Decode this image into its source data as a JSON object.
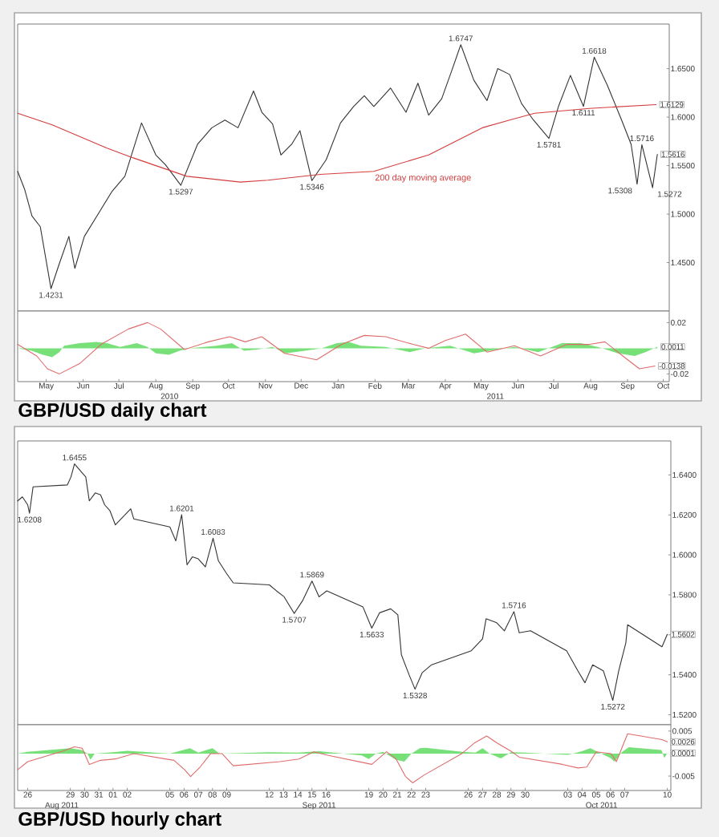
{
  "chart_data": [
    {
      "type": "line",
      "xlim": [
        "2010-04-21",
        "2011-10-20"
      ],
      "ylim": [
        1.4,
        1.696
      ],
      "tick_labels": "y",
      "yticks": [
        {
          "value": 1.45,
          "label": "1.4500"
        },
        {
          "value": 1.5,
          "label": "1.5000"
        },
        {
          "value": 1.55,
          "label": "1.5500"
        },
        {
          "value": 1.6,
          "label": "1.6000"
        },
        {
          "value": 1.65,
          "label": "1.6500"
        }
      ],
      "series": [
        {
          "color": "#333333",
          "x": [
            "2010-04-21",
            "2010-04-27",
            "2010-05-03",
            "2010-05-10",
            "2010-05-19",
            "2010-05-26",
            "2010-06-03",
            "2010-06-08",
            "2010-06-16",
            "2010-06-29",
            "2010-07-09",
            "2010-07-20",
            "2010-08-03",
            "2010-08-15",
            "2010-08-23",
            "2010-09-05",
            "2010-09-19",
            "2010-10-01",
            "2010-10-12",
            "2010-10-23",
            "2010-11-05",
            "2010-11-12",
            "2010-11-21",
            "2010-11-28",
            "2010-12-07",
            "2010-12-14",
            "2010-12-24",
            "2011-01-05",
            "2011-01-17",
            "2011-01-28",
            "2011-02-06",
            "2011-02-14",
            "2011-02-28",
            "2011-03-13",
            "2011-03-23",
            "2011-04-01",
            "2011-04-12",
            "2011-04-21",
            "2011-04-28",
            "2011-05-09",
            "2011-05-20",
            "2011-05-29",
            "2011-06-08",
            "2011-06-18",
            "2011-06-28",
            "2011-07-11",
            "2011-07-19",
            "2011-07-29",
            "2011-08-09",
            "2011-08-18",
            "2011-08-29",
            "2011-09-10",
            "2011-09-18",
            "2011-09-23",
            "2011-09-27",
            "2011-10-06",
            "2011-10-10"
          ],
          "values": [
            1.544,
            1.525,
            1.498,
            1.487,
            1.4231,
            1.449,
            1.477,
            1.444,
            1.477,
            1.503,
            1.523,
            1.539,
            1.594,
            1.561,
            1.551,
            1.5297,
            1.572,
            1.589,
            1.597,
            1.589,
            1.627,
            1.605,
            1.593,
            1.561,
            1.572,
            1.586,
            1.5346,
            1.556,
            1.594,
            1.611,
            1.622,
            1.611,
            1.63,
            1.605,
            1.635,
            1.602,
            1.619,
            1.65,
            1.6747,
            1.638,
            1.617,
            1.65,
            1.644,
            1.614,
            1.597,
            1.5781,
            1.611,
            1.643,
            1.6111,
            1.6618,
            1.633,
            1.597,
            1.572,
            1.5308,
            1.5716,
            1.5272,
            1.5616
          ],
          "value_labels": [
            null,
            null,
            null,
            null,
            null,
            null,
            null,
            null,
            null,
            null,
            null,
            null,
            null,
            null,
            null,
            null,
            null,
            null,
            null,
            null,
            null,
            null,
            null,
            null,
            null,
            null,
            null,
            null,
            null,
            null,
            null,
            null,
            null,
            null,
            null,
            null,
            null,
            null,
            null,
            null,
            null,
            null,
            null,
            null,
            null,
            null,
            null,
            null,
            null,
            null,
            null,
            null,
            null,
            null,
            null,
            null,
            "1.5616"
          ]
        },
        {
          "name": "200 day moving average",
          "color": "#d43c3c",
          "x": [
            "2010-04-21",
            "2010-05-20",
            "2010-07-05",
            "2010-07-27",
            "2010-09-10",
            "2010-10-25",
            "2010-11-17",
            "2010-12-31",
            "2011-02-14",
            "2011-04-01",
            "2011-05-16",
            "2011-06-08",
            "2011-06-29",
            "2011-08-14",
            "2011-10-09"
          ],
          "values": [
            1.604,
            1.592,
            1.568,
            1.558,
            1.539,
            1.533,
            1.535,
            1.541,
            1.544,
            1.561,
            1.589,
            1.597,
            1.604,
            1.609,
            1.6129
          ],
          "value_labels": [
            null,
            null,
            null,
            null,
            null,
            null,
            null,
            null,
            null,
            null,
            null,
            null,
            null,
            null,
            "1.6129"
          ]
        }
      ],
      "annotations": [
        {
          "text": "1.4231",
          "x": "2010-05-19",
          "y": 1.4231
        },
        {
          "text": "1.5297",
          "x": "2010-09-05",
          "y": 1.5297
        },
        {
          "text": "1.5346",
          "x": "2010-12-24",
          "y": 1.5346
        },
        {
          "text": "1.6747",
          "x": "2011-04-28",
          "y": 1.6747
        },
        {
          "text": "1.5781",
          "x": "2011-07-11",
          "y": 1.5781
        },
        {
          "text": "1.6111",
          "x": "2011-08-09",
          "y": 1.6111
        },
        {
          "text": "1.6618",
          "x": "2011-08-18",
          "y": 1.6618
        },
        {
          "text": "1.5308",
          "x": "2011-09-23",
          "y": 1.5308
        },
        {
          "text": "1.5716",
          "x": "2011-09-27",
          "y": 1.5716
        },
        {
          "text": "1.5272",
          "x": "2011-10-06",
          "y": 1.5272
        }
      ]
    },
    {
      "type": "line",
      "title": "GBP/USD daily chart",
      "xlim": [
        "2010-04-21",
        "2011-10-20"
      ],
      "ylim": [
        -0.026,
        0.029
      ],
      "yticks": [
        0.02,
        -0.02
      ],
      "xticks": [
        {
          "value": "2010-05-15",
          "label": "May"
        },
        {
          "value": "2010-06-15",
          "label": "Jun"
        },
        {
          "value": "2010-07-15",
          "label": "Jul"
        },
        {
          "value": "2010-08-15",
          "label": "Aug"
        },
        {
          "value": "2010-09-15",
          "label": "Sep"
        },
        {
          "value": "2010-10-15",
          "label": "Oct"
        },
        {
          "value": "2010-11-15",
          "label": "Nov"
        },
        {
          "value": "2010-12-15",
          "label": "Dec"
        },
        {
          "value": "2011-01-15",
          "label": "Jan"
        },
        {
          "value": "2011-02-15",
          "label": "Feb"
        },
        {
          "value": "2011-03-15",
          "label": "Mar"
        },
        {
          "value": "2011-04-15",
          "label": "Apr"
        },
        {
          "value": "2011-05-15",
          "label": "May"
        },
        {
          "value": "2011-06-15",
          "label": "Jun"
        },
        {
          "value": "2011-07-15",
          "label": "Jul"
        },
        {
          "value": "2011-08-15",
          "label": "Aug"
        },
        {
          "value": "2011-09-15",
          "label": "Sep"
        },
        {
          "value": "2011-10-15",
          "label": "Oct"
        }
      ],
      "series": [
        {
          "type": "area",
          "color": "#78e078",
          "x": [
            "2010-04-21",
            "2010-05-03",
            "2010-05-12",
            "2010-05-20",
            "2010-05-26",
            "2010-05-30",
            "2010-06-12",
            "2010-06-26",
            "2010-07-05",
            "2010-07-16",
            "2010-07-30",
            "2010-08-08",
            "2010-08-15",
            "2010-08-26",
            "2010-09-04",
            "2010-09-12",
            "2010-10-05",
            "2010-10-18",
            "2010-10-28",
            "2010-11-08",
            "2010-11-21",
            "2010-12-02",
            "2010-12-18",
            "2011-01-01",
            "2011-01-14",
            "2011-01-24",
            "2011-02-03",
            "2011-02-24",
            "2011-03-16",
            "2011-03-29",
            "2011-04-19",
            "2011-05-09",
            "2011-05-22",
            "2011-06-12",
            "2011-07-02",
            "2011-07-22",
            "2011-08-07",
            "2011-08-21",
            "2011-09-07",
            "2011-09-21",
            "2011-09-30",
            "2011-10-10"
          ],
          "values": [
            0,
            -0.002,
            -0.005,
            -0.007,
            -0.003,
            0.002,
            0.004,
            0.005,
            0.004,
            0.001,
            0.004,
            0.001,
            -0.004,
            -0.005,
            -0.002,
            0,
            0.002,
            0.004,
            -0.002,
            -0.001,
            0.001,
            -0.004,
            -0.002,
            0,
            0.004,
            0.005,
            0.002,
            0.001,
            -0.003,
            0,
            0.002,
            -0.004,
            -0.002,
            0.001,
            -0.003,
            0.004,
            0.004,
            0.001,
            -0.004,
            -0.006,
            -0.003,
            0.0011
          ],
          "value_labels": [
            null,
            null,
            null,
            null,
            null,
            null,
            null,
            null,
            null,
            null,
            null,
            null,
            null,
            null,
            null,
            null,
            null,
            null,
            null,
            null,
            null,
            null,
            null,
            null,
            null,
            null,
            null,
            null,
            null,
            null,
            null,
            null,
            null,
            null,
            null,
            null,
            null,
            null,
            null,
            null,
            null,
            "0.0011"
          ]
        },
        {
          "type": "line",
          "color": "#e06b6b",
          "x": [
            "2010-04-21",
            "2010-05-07",
            "2010-05-16",
            "2010-05-26",
            "2010-06-12",
            "2010-06-30",
            "2010-07-23",
            "2010-08-08",
            "2010-08-19",
            "2010-09-08",
            "2010-09-28",
            "2010-10-16",
            "2010-10-29",
            "2010-11-12",
            "2010-12-01",
            "2010-12-28",
            "2011-01-18",
            "2011-02-06",
            "2011-02-24",
            "2011-03-19",
            "2011-04-01",
            "2011-04-15",
            "2011-05-02",
            "2011-05-20",
            "2011-06-12",
            "2011-07-04",
            "2011-07-26",
            "2011-08-14",
            "2011-08-27",
            "2011-09-11",
            "2011-09-25",
            "2011-10-08"
          ],
          "values": [
            0.003,
            -0.006,
            -0.016,
            -0.02,
            -0.012,
            0.003,
            0.015,
            0.02,
            0.015,
            -0.001,
            0.005,
            0.009,
            0.005,
            0.009,
            -0.004,
            -0.009,
            0.003,
            0.01,
            0.009,
            0.003,
            0,
            0.006,
            0.011,
            -0.003,
            0.002,
            -0.006,
            0.003,
            0.003,
            0.005,
            -0.006,
            -0.016,
            -0.0138
          ],
          "value_labels": [
            null,
            null,
            null,
            null,
            null,
            null,
            null,
            null,
            null,
            null,
            null,
            null,
            null,
            null,
            null,
            null,
            null,
            null,
            null,
            null,
            null,
            null,
            null,
            null,
            null,
            null,
            null,
            null,
            null,
            null,
            null,
            "-0.0138"
          ]
        }
      ],
      "annotations": [
        "2010",
        "2011"
      ]
    },
    {
      "type": "line",
      "xlim": [
        "2011-08-25T19:00",
        "2011-10-10T18:00"
      ],
      "ylim": [
        1.515,
        1.657
      ],
      "tick_labels": "y",
      "yticks": [
        {
          "value": 1.52,
          "label": "1.5200"
        },
        {
          "value": 1.54,
          "label": "1.5400"
        },
        {
          "value": 1.56,
          "label": null
        },
        {
          "value": 1.58,
          "label": "1.5800"
        },
        {
          "value": 1.6,
          "label": "1.6000"
        },
        {
          "value": 1.62,
          "label": "1.6200"
        },
        {
          "value": 1.64,
          "label": "1.6400"
        }
      ],
      "series": [
        {
          "color": "#333333",
          "x": [
            "2011-08-25T19:00",
            "2011-08-26T03:00",
            "2011-08-26T12:00",
            "2011-08-26T15:00",
            "2011-08-26T21:00",
            "2011-08-29T07:00",
            "2011-08-29T13:00",
            "2011-08-29T19:00",
            "2011-08-30T08:00",
            "2011-08-30T14:00",
            "2011-08-30T20:00",
            "2011-08-31T06:00",
            "2011-08-31T15:00",
            "2011-08-31T22:00",
            "2011-09-01T07:00",
            "2011-09-01T16:00",
            "2011-09-02T05:00",
            "2011-09-02T18:00",
            "2011-09-02T23:00",
            "2011-09-05T12:00",
            "2011-09-05T22:00",
            "2011-09-06T08:00",
            "2011-09-06T17:00",
            "2011-09-07T02:00",
            "2011-09-07T12:00",
            "2011-09-08T00:00",
            "2011-09-08T13:00",
            "2011-09-08T22:00",
            "2011-09-09T11:00",
            "2011-09-09T23:00",
            "2011-09-12T12:00",
            "2011-09-13T00:00",
            "2011-09-13T13:00",
            "2011-09-14T06:00",
            "2011-09-14T20:00",
            "2011-09-15T12:00",
            "2011-09-16T00:00",
            "2011-09-16T13:00",
            "2011-09-19T02:00",
            "2011-09-19T17:00",
            "2011-09-20T06:00",
            "2011-09-21T01:00",
            "2011-09-21T13:00",
            "2011-09-21T19:00",
            "2011-09-22T08:00",
            "2011-09-22T18:00",
            "2011-09-23T06:00",
            "2011-09-23T22:00",
            "2011-09-26T17:00",
            "2011-09-27T12:00",
            "2011-09-27T18:00",
            "2011-09-28T12:00",
            "2011-09-29T01:00",
            "2011-09-29T17:00",
            "2011-09-30T02:00",
            "2011-09-30T21:00",
            "2011-10-03T10:00",
            "2011-10-04T05:00",
            "2011-10-04T17:00",
            "2011-10-05T06:00",
            "2011-10-06T00:00",
            "2011-10-06T16:00",
            "2011-10-07T02:00",
            "2011-10-07T14:00",
            "2011-10-07T17:00",
            "2011-10-10T03:00",
            "2011-10-10T12:00"
          ],
          "values": [
            1.627,
            1.629,
            1.625,
            1.6208,
            1.634,
            1.635,
            1.639,
            1.6455,
            1.641,
            1.639,
            1.627,
            1.631,
            1.63,
            1.625,
            1.622,
            1.615,
            1.619,
            1.623,
            1.618,
            1.614,
            1.607,
            1.6201,
            1.595,
            1.599,
            1.598,
            1.594,
            1.6083,
            1.597,
            1.591,
            1.586,
            1.585,
            1.582,
            1.579,
            1.5707,
            1.577,
            1.5869,
            1.579,
            1.582,
            1.574,
            1.5633,
            1.571,
            1.573,
            1.57,
            1.55,
            1.54,
            1.5328,
            1.541,
            1.545,
            1.552,
            1.558,
            1.568,
            1.566,
            1.562,
            1.5716,
            1.561,
            1.562,
            1.552,
            1.542,
            1.536,
            1.545,
            1.542,
            1.5272,
            1.542,
            1.556,
            1.565,
            1.554,
            1.5602
          ],
          "value_labels": [
            null,
            null,
            null,
            null,
            null,
            null,
            null,
            null,
            null,
            null,
            null,
            null,
            null,
            null,
            null,
            null,
            null,
            null,
            null,
            null,
            null,
            null,
            null,
            null,
            null,
            null,
            null,
            null,
            null,
            null,
            null,
            null,
            null,
            null,
            null,
            null,
            null,
            null,
            null,
            null,
            null,
            null,
            null,
            null,
            null,
            null,
            null,
            null,
            null,
            null,
            null,
            null,
            null,
            null,
            null,
            null,
            null,
            null,
            null,
            null,
            null,
            null,
            null,
            null,
            null,
            null,
            "1.5602"
          ]
        }
      ],
      "annotations": [
        {
          "text": "1.6208",
          "x": "2011-08-26T15:00",
          "y": 1.6208
        },
        {
          "text": "1.6455",
          "x": "2011-08-29T19:00",
          "y": 1.6455
        },
        {
          "text": "1.6201",
          "x": "2011-09-06T08:00",
          "y": 1.6201
        },
        {
          "text": "1.6083",
          "x": "2011-09-08T13:00",
          "y": 1.6083
        },
        {
          "text": "1.5707",
          "x": "2011-09-14T06:00",
          "y": 1.5707
        },
        {
          "text": "1.5869",
          "x": "2011-09-15T12:00",
          "y": 1.5869
        },
        {
          "text": "1.5633",
          "x": "2011-09-19T17:00",
          "y": 1.5633
        },
        {
          "text": "1.5328",
          "x": "2011-09-22T18:00",
          "y": 1.5328
        },
        {
          "text": "1.5716",
          "x": "2011-09-29T17:00",
          "y": 1.5716
        },
        {
          "text": "1.5272",
          "x": "2011-10-06T16:00",
          "y": 1.5272
        }
      ]
    },
    {
      "type": "line",
      "title": "GBP/USD hourly chart",
      "xlim": [
        "2011-08-25T19:00",
        "2011-10-10T18:00"
      ],
      "ylim": [
        -0.0082,
        0.0064
      ],
      "yticks": [
        0.005,
        -0.005
      ],
      "xticks": [
        {
          "value": "2011-08-26T12:00",
          "label": "26"
        },
        {
          "value": "2011-08-29T12:00",
          "label": "29"
        },
        {
          "value": "2011-08-30T12:00",
          "label": "30"
        },
        {
          "value": "2011-08-31T12:00",
          "label": "31"
        },
        {
          "value": "2011-09-01T12:00",
          "label": "01"
        },
        {
          "value": "2011-09-02T12:00",
          "label": "02"
        },
        {
          "value": "2011-09-05T12:00",
          "label": "05"
        },
        {
          "value": "2011-09-06T12:00",
          "label": "06"
        },
        {
          "value": "2011-09-07T12:00",
          "label": "07"
        },
        {
          "value": "2011-09-08T12:00",
          "label": "08"
        },
        {
          "value": "2011-09-09T12:00",
          "label": "09"
        },
        {
          "value": "2011-09-12T12:00",
          "label": "12"
        },
        {
          "value": "2011-09-13T12:00",
          "label": "13"
        },
        {
          "value": "2011-09-14T12:00",
          "label": "14"
        },
        {
          "value": "2011-09-15T12:00",
          "label": "15"
        },
        {
          "value": "2011-09-16T12:00",
          "label": "16"
        },
        {
          "value": "2011-09-19T12:00",
          "label": "19"
        },
        {
          "value": "2011-09-20T12:00",
          "label": "20"
        },
        {
          "value": "2011-09-21T12:00",
          "label": "21"
        },
        {
          "value": "2011-09-22T12:00",
          "label": "22"
        },
        {
          "value": "2011-09-23T12:00",
          "label": "23"
        },
        {
          "value": "2011-09-26T12:00",
          "label": "26"
        },
        {
          "value": "2011-09-27T12:00",
          "label": "27"
        },
        {
          "value": "2011-09-28T12:00",
          "label": "28"
        },
        {
          "value": "2011-09-29T12:00",
          "label": "29"
        },
        {
          "value": "2011-09-30T12:00",
          "label": "30"
        },
        {
          "value": "2011-10-03T12:00",
          "label": "03"
        },
        {
          "value": "2011-10-04T12:00",
          "label": "04"
        },
        {
          "value": "2011-10-05T12:00",
          "label": "05"
        },
        {
          "value": "2011-10-06T12:00",
          "label": "06"
        },
        {
          "value": "2011-10-07T12:00",
          "label": "07"
        },
        {
          "value": "2011-10-10T12:00",
          "label": "10"
        }
      ],
      "series": [
        {
          "type": "area",
          "color": "#78e078",
          "x": [
            "2011-08-25T19:00",
            "2011-08-26T12:00",
            "2011-08-29T12:00",
            "2011-08-30T07:00",
            "2011-08-30T17:00",
            "2011-08-30T22:00",
            "2011-08-31T05:00",
            "2011-09-01T12:00",
            "2011-09-02T12:00",
            "2011-09-05T12:00",
            "2011-09-06T22:00",
            "2011-09-07T12:00",
            "2011-09-08T12:00",
            "2011-09-09T00:00",
            "2011-09-12T12:00",
            "2011-09-14T12:00",
            "2011-09-16T00:00",
            "2011-09-19T00:00",
            "2011-09-19T12:00",
            "2011-09-20T00:00",
            "2011-09-20T12:00",
            "2011-09-21T10:00",
            "2011-09-22T00:00",
            "2011-09-22T12:00",
            "2011-09-23T02:00",
            "2011-09-23T12:00",
            "2011-09-26T02:00",
            "2011-09-27T00:00",
            "2011-09-27T12:00",
            "2011-09-28T00:00",
            "2011-09-28T19:00",
            "2011-09-29T12:00",
            "2011-09-30T12:00",
            "2011-10-03T12:00",
            "2011-10-04T12:00",
            "2011-10-05T02:00",
            "2011-10-05T17:00",
            "2011-10-06T12:00",
            "2011-10-06T19:00",
            "2011-10-07T07:00",
            "2011-10-07T19:00",
            "2011-10-10T02:00",
            "2011-10-10T07:00",
            "2011-10-10T12:00"
          ],
          "values": [
            0,
            0.0004,
            0.0012,
            0.0008,
            0,
            -0.0014,
            0,
            0.0003,
            0.0006,
            0,
            0.0012,
            0.0002,
            0.0012,
            0,
            0.0003,
            0.0002,
            0.0005,
            -0.0004,
            -0.0012,
            0,
            0.0004,
            -0.0014,
            -0.0018,
            0,
            0.0012,
            0.0013,
            0.0004,
            0.0002,
            0.0012,
            0,
            -0.0011,
            0.0003,
            0.0002,
            -0.0003,
            0.0005,
            0.0012,
            0.0002,
            -0.001,
            -0.0018,
            0.0003,
            0.0014,
            0.0008,
            -0.001,
            0.0001
          ],
          "value_labels": [
            null,
            null,
            null,
            null,
            null,
            null,
            null,
            null,
            null,
            null,
            null,
            null,
            null,
            null,
            null,
            null,
            null,
            null,
            null,
            null,
            null,
            null,
            null,
            null,
            null,
            null,
            null,
            null,
            null,
            null,
            null,
            null,
            null,
            null,
            null,
            null,
            null,
            null,
            null,
            null,
            null,
            null,
            null,
            "0.0001"
          ]
        },
        {
          "type": "line",
          "color": "#e06b6b",
          "x": [
            "2011-08-25T19:00",
            "2011-08-26T12:00",
            "2011-08-29T01:00",
            "2011-08-29T19:00",
            "2011-08-30T08:00",
            "2011-08-30T20:00",
            "2011-08-31T15:00",
            "2011-09-01T16:00",
            "2011-09-02T23:00",
            "2011-09-05T19:00",
            "2011-09-06T13:00",
            "2011-09-06T23:00",
            "2011-09-07T15:00",
            "2011-09-08T09:00",
            "2011-09-09T04:00",
            "2011-09-09T23:00",
            "2011-09-13T06:00",
            "2011-09-14T14:00",
            "2011-09-15T15:00",
            "2011-09-16T16:00",
            "2011-09-19T17:00",
            "2011-09-20T18:00",
            "2011-09-21T10:00",
            "2011-09-22T02:00",
            "2011-09-22T14:00",
            "2011-09-23T09:00",
            "2011-09-26T01:00",
            "2011-09-26T23:00",
            "2011-09-27T19:00",
            "2011-09-28T12:00",
            "2011-09-29T11:00",
            "2011-09-30T02:00",
            "2011-10-03T03:00",
            "2011-10-04T05:00",
            "2011-10-04T20:00",
            "2011-10-05T12:00",
            "2011-10-06T13:00",
            "2011-10-06T22:00",
            "2011-10-07T17:00",
            "2011-10-10T03:00",
            "2011-10-10T12:00"
          ],
          "values": [
            -0.0036,
            -0.0018,
            0.0006,
            0.0015,
            0.0012,
            -0.0024,
            -0.0015,
            -0.0012,
            0,
            -0.0015,
            -0.0036,
            -0.0051,
            -0.003,
            0,
            0,
            -0.0027,
            -0.0018,
            -0.0012,
            0.0004,
            -0.0004,
            -0.0024,
            0.0004,
            -0.0012,
            -0.0051,
            -0.0065,
            -0.0048,
            0,
            0.0024,
            0.0039,
            0.0024,
            0.0006,
            -0.0008,
            -0.0024,
            -0.0032,
            -0.003,
            0.0004,
            0,
            -0.0018,
            0.0044,
            0.0031,
            0.0026
          ],
          "value_labels": [
            null,
            null,
            null,
            null,
            null,
            null,
            null,
            null,
            null,
            null,
            null,
            null,
            null,
            null,
            null,
            null,
            null,
            null,
            null,
            null,
            null,
            null,
            null,
            null,
            null,
            null,
            null,
            null,
            null,
            null,
            null,
            null,
            null,
            null,
            null,
            null,
            null,
            null,
            null,
            null,
            "0.0026"
          ]
        }
      ],
      "annotations": [
        "Aug 2011",
        "Sep 2011",
        "Oct 2011"
      ]
    }
  ]
}
